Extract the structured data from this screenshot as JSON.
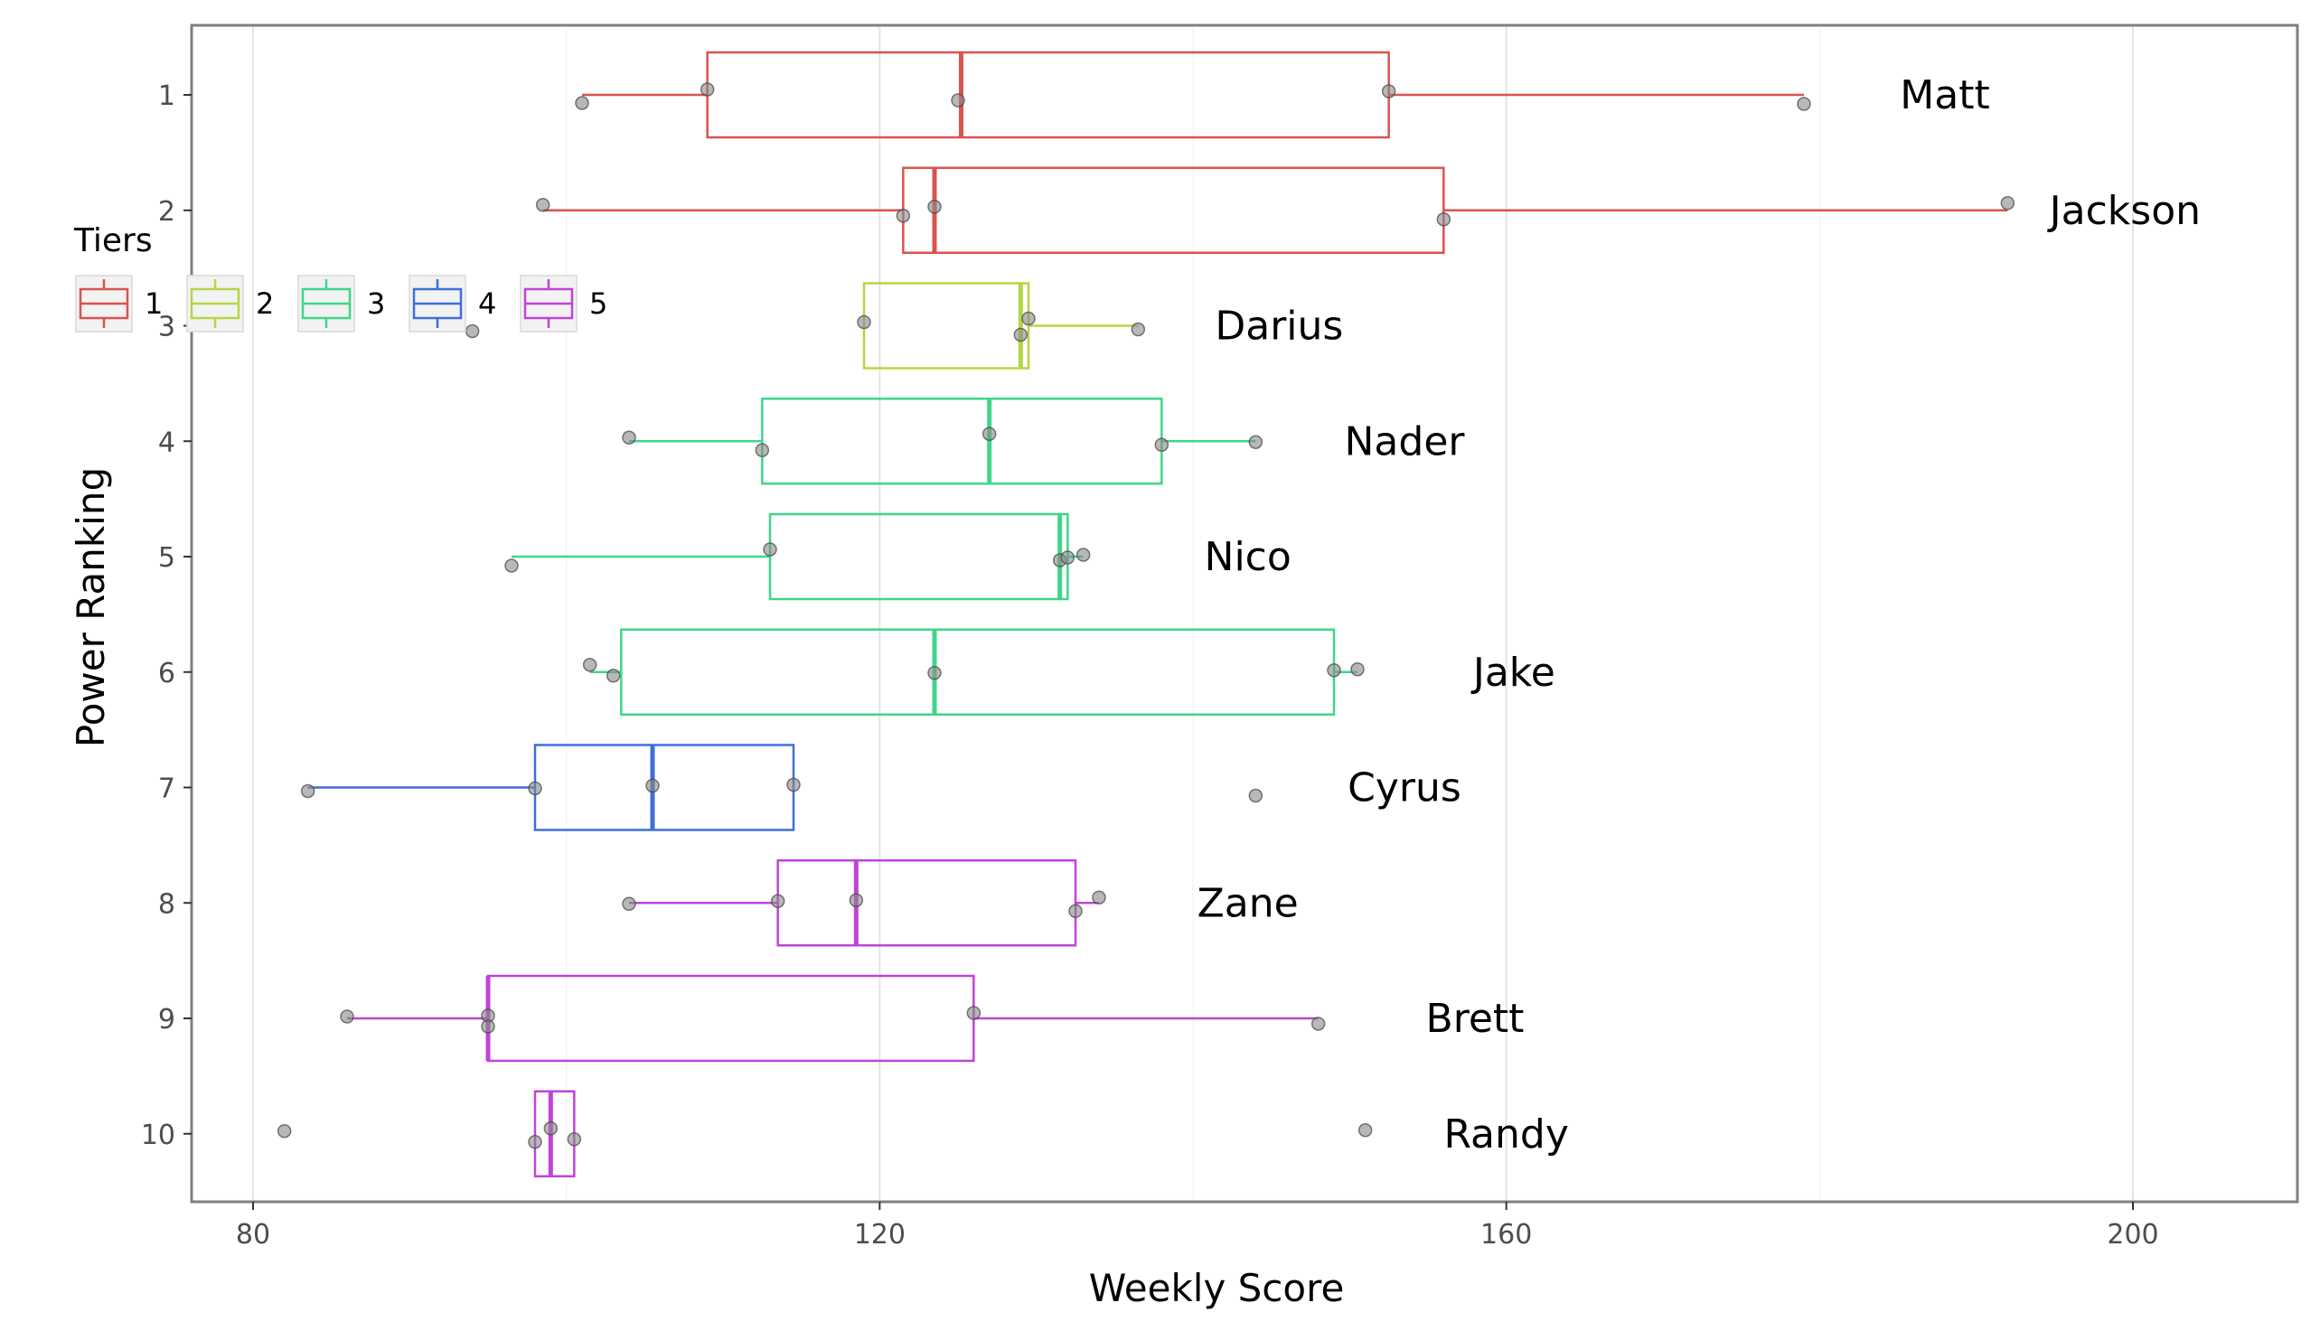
{
  "chart_data": {
    "type": "boxplot",
    "title": "",
    "xlabel": "Weekly Score",
    "ylabel": "Power Ranking",
    "xlim": [
      76,
      212
    ],
    "x_ticks": [
      80,
      120,
      160,
      200
    ],
    "y_categories": [
      "1",
      "2",
      "3",
      "4",
      "5",
      "6",
      "7",
      "8",
      "9",
      "10"
    ],
    "grid": true,
    "legend": {
      "title": "Tiers",
      "position": "top-left",
      "entries": [
        {
          "label": "1",
          "color": "#D9534F"
        },
        {
          "label": "2",
          "color": "#B5D644"
        },
        {
          "label": "3",
          "color": "#3FD68A"
        },
        {
          "label": "4",
          "color": "#3F6FD6"
        },
        {
          "label": "5",
          "color": "#C044D6"
        }
      ]
    },
    "series": [
      {
        "rank": 1,
        "name": "Matt",
        "tier": "1",
        "color": "#D9534F",
        "whisker_low": 101,
        "q1": 109,
        "median": 125.2,
        "q3": 152.5,
        "whisker_high": 179,
        "points": [
          101,
          109,
          125,
          152.5,
          179
        ],
        "label_x": 188
      },
      {
        "rank": 2,
        "name": "Jackson",
        "tier": "1",
        "color": "#D9534F",
        "whisker_low": 98.5,
        "q1": 121.5,
        "median": 123.5,
        "q3": 156,
        "whisker_high": 192,
        "points": [
          98.5,
          121.5,
          123.5,
          156,
          192
        ],
        "label_x": 199.5
      },
      {
        "rank": 3,
        "name": "Darius",
        "tier": "2",
        "color": "#B5D644",
        "whisker_low": 119,
        "q1": 119,
        "median": 129,
        "q3": 129.5,
        "whisker_high": 136.5,
        "points": [
          94,
          119,
          129,
          129.5,
          136.5
        ],
        "label_x": 145.5
      },
      {
        "rank": 4,
        "name": "Nader",
        "tier": "3",
        "color": "#3FD68A",
        "whisker_low": 104,
        "q1": 112.5,
        "median": 127,
        "q3": 138,
        "whisker_high": 144,
        "points": [
          104,
          112.5,
          127,
          138,
          144
        ],
        "label_x": 153.5
      },
      {
        "rank": 5,
        "name": "Nico",
        "tier": "3",
        "color": "#3FD68A",
        "whisker_low": 96.5,
        "q1": 113,
        "median": 131.5,
        "q3": 132,
        "whisker_high": 133,
        "points": [
          96.5,
          113,
          131.5,
          132,
          133
        ],
        "label_x": 143.5
      },
      {
        "rank": 6,
        "name": "Jake",
        "tier": "3",
        "color": "#3FD68A",
        "whisker_low": 101.5,
        "q1": 103.5,
        "median": 123.5,
        "q3": 149,
        "whisker_high": 150.5,
        "points": [
          101.5,
          103,
          123.5,
          149,
          150.5
        ],
        "label_x": 160.5
      },
      {
        "rank": 7,
        "name": "Cyrus",
        "tier": "4",
        "color": "#3F6FD6",
        "whisker_low": 83.5,
        "q1": 98,
        "median": 105.5,
        "q3": 114.5,
        "whisker_high": 114.5,
        "points": [
          83.5,
          98,
          105.5,
          114.5,
          144
        ],
        "label_x": 153.5
      },
      {
        "rank": 8,
        "name": "Zane",
        "tier": "5",
        "color": "#C044D6",
        "whisker_low": 104,
        "q1": 113.5,
        "median": 118.5,
        "q3": 132.5,
        "whisker_high": 134,
        "points": [
          104,
          113.5,
          118.5,
          132.5,
          134
        ],
        "label_x": 143.5
      },
      {
        "rank": 9,
        "name": "Brett",
        "tier": "5",
        "color": "#C044D6",
        "whisker_low": 86,
        "q1": 95,
        "median": 95,
        "q3": 126,
        "whisker_high": 148,
        "points": [
          86,
          95,
          95,
          126,
          148
        ],
        "label_x": 158
      },
      {
        "rank": 10,
        "name": "Randy",
        "tier": "5",
        "color": "#C044D6",
        "whisker_low": 98,
        "q1": 98,
        "median": 99,
        "q3": 100.5,
        "whisker_high": 100.5,
        "points": [
          82,
          98,
          99,
          100.5,
          151
        ],
        "label_x": 160
      }
    ]
  }
}
